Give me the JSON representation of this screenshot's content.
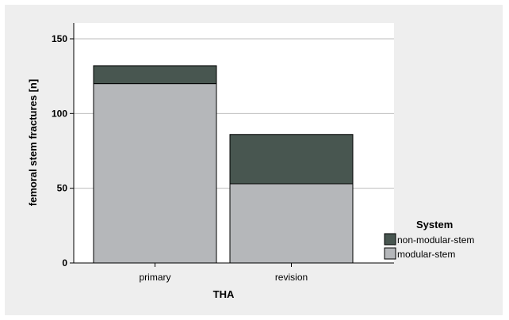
{
  "chart_data": {
    "type": "bar",
    "stacked": true,
    "categories": [
      "primary",
      "revision"
    ],
    "series": [
      {
        "name": "modular-stem",
        "values": [
          120,
          53
        ],
        "color": "#b5b7ba"
      },
      {
        "name": "non-modular-stem",
        "values": [
          12,
          33
        ],
        "color": "#485650"
      }
    ],
    "xlabel": "THA",
    "ylabel": "femoral stem fractures [n]",
    "ylim": [
      0,
      155
    ],
    "yticks": [
      0,
      50,
      100,
      150
    ],
    "grid": true,
    "legend": {
      "title": "System",
      "placement": "right",
      "order": [
        "non-modular-stem",
        "modular-stem"
      ]
    },
    "colors": {
      "panel": "#eeeeee",
      "plot_area": "#ffffff",
      "gridline": "#bdbdbd",
      "axis": "#000000",
      "bar_outline": "#000000"
    }
  }
}
